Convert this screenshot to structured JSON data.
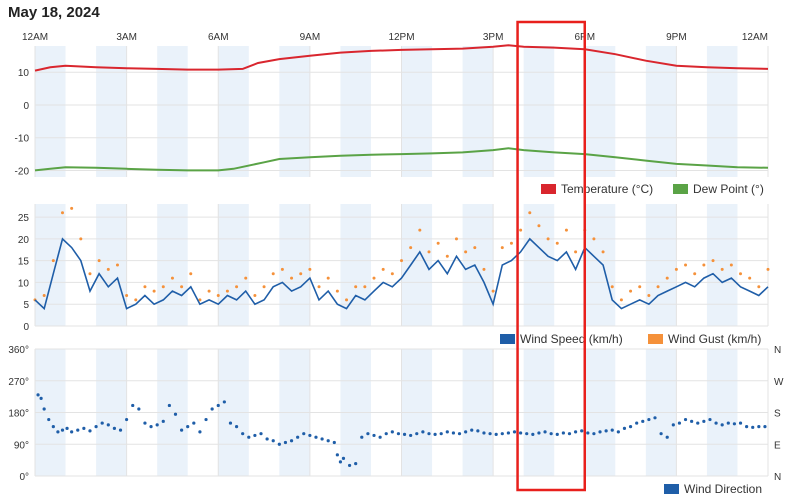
{
  "page": {
    "title": "May 18, 2024"
  },
  "colors": {
    "temperature": "#d9262e",
    "dew_point": "#5aa346",
    "wind_speed": "#1f5ea8",
    "wind_gust": "#f5913a",
    "wind_direction": "#1f5ea8",
    "band": "#eaf2fa",
    "grid": "#e3e3e3",
    "highlight": "#e8201c"
  },
  "time_axis": {
    "labels": [
      "12AM",
      "3AM",
      "6AM",
      "9AM",
      "12PM",
      "3PM",
      "6PM",
      "9PM",
      "12AM"
    ],
    "hours": [
      0,
      3,
      6,
      9,
      12,
      15,
      18,
      21,
      24
    ]
  },
  "highlight": {
    "start_hour": 15.8,
    "end_hour": 18.0
  },
  "chart_data": [
    {
      "type": "line",
      "name": "temperature-panel",
      "xlabel": "",
      "ylabel": "",
      "xlim": [
        0,
        24
      ],
      "ylim": [
        -22,
        18
      ],
      "yticks": [
        10,
        0,
        -10,
        -20
      ],
      "grid": true,
      "legend": "bottom-right",
      "series": [
        {
          "name": "Temperature (°C)",
          "x": [
            0,
            0.5,
            1,
            2,
            3,
            4,
            5,
            6,
            6.8,
            7.3,
            8,
            9,
            10,
            11,
            12,
            13,
            14,
            15,
            15.5,
            16,
            17,
            18,
            19,
            20,
            21,
            22,
            23,
            24
          ],
          "y": [
            10.5,
            11.5,
            12,
            11.5,
            11.2,
            11,
            10.8,
            10.8,
            11,
            12.8,
            14,
            15,
            16,
            16.5,
            16.8,
            17,
            17.2,
            17.8,
            18.2,
            17.8,
            17.5,
            17,
            15.5,
            13.5,
            12,
            11.5,
            11.2,
            11
          ]
        },
        {
          "name": "Dew Point (°)",
          "x": [
            0,
            0.5,
            1,
            2,
            3,
            4,
            5,
            6,
            6.5,
            7.5,
            8,
            9,
            10,
            11,
            12,
            13,
            14,
            15,
            15.5,
            16,
            17,
            18,
            19,
            20,
            21,
            22,
            23,
            24
          ],
          "y": [
            -20,
            -19.5,
            -19,
            -19.2,
            -19.5,
            -19.8,
            -20,
            -20,
            -19.5,
            -17.5,
            -16.5,
            -16,
            -15.5,
            -15.2,
            -15,
            -14.8,
            -14.5,
            -13.8,
            -13.2,
            -13.8,
            -14.5,
            -15,
            -16,
            -17,
            -18,
            -18.5,
            -19,
            -19.2
          ]
        }
      ]
    },
    {
      "type": "line",
      "name": "wind-panel",
      "xlabel": "",
      "ylabel": "",
      "xlim": [
        0,
        24
      ],
      "ylim": [
        0,
        28
      ],
      "yticks": [
        0,
        5,
        10,
        15,
        20,
        25
      ],
      "grid": true,
      "legend": "bottom-right",
      "series": [
        {
          "name": "Wind Speed (km/h)",
          "x": [
            0,
            0.3,
            0.6,
            0.9,
            1.2,
            1.5,
            1.8,
            2.1,
            2.4,
            2.7,
            3,
            3.3,
            3.6,
            3.9,
            4.2,
            4.5,
            4.8,
            5.1,
            5.4,
            5.7,
            6,
            6.3,
            6.6,
            6.9,
            7.2,
            7.5,
            7.8,
            8.1,
            8.4,
            8.7,
            9,
            9.3,
            9.6,
            9.9,
            10.2,
            10.5,
            10.8,
            11.1,
            11.4,
            11.7,
            12,
            12.3,
            12.6,
            12.9,
            13.2,
            13.5,
            13.8,
            14.1,
            14.4,
            14.7,
            15,
            15.3,
            15.6,
            15.9,
            16.2,
            16.5,
            16.8,
            17.1,
            17.4,
            17.7,
            18,
            18.3,
            18.6,
            18.9,
            19.2,
            19.5,
            19.8,
            20.1,
            20.4,
            20.7,
            21,
            21.3,
            21.6,
            21.9,
            22.2,
            22.5,
            22.8,
            23.1,
            23.4,
            23.7,
            24
          ],
          "y": [
            6,
            4,
            12,
            20,
            18,
            15,
            8,
            12,
            9,
            11,
            4,
            5,
            7,
            5,
            6,
            8,
            7,
            9,
            5,
            6,
            5,
            7,
            6,
            8,
            5,
            6,
            9,
            10,
            8,
            9,
            11,
            6,
            8,
            5,
            4,
            7,
            6,
            8,
            10,
            9,
            11,
            14,
            17,
            13,
            15,
            12,
            16,
            13,
            14,
            10,
            5,
            14,
            15,
            17,
            20,
            18,
            16,
            15,
            17,
            13,
            18,
            16,
            14,
            6,
            4,
            5,
            6,
            5,
            7,
            8,
            9,
            10,
            9,
            11,
            12,
            10,
            11,
            9,
            8,
            7,
            9
          ]
        },
        {
          "name": "Wind Gust (km/h)",
          "x": [
            0,
            0.3,
            0.6,
            0.9,
            1.2,
            1.5,
            1.8,
            2.1,
            2.4,
            2.7,
            3,
            3.3,
            3.6,
            3.9,
            4.2,
            4.5,
            4.8,
            5.1,
            5.4,
            5.7,
            6,
            6.3,
            6.6,
            6.9,
            7.2,
            7.5,
            7.8,
            8.1,
            8.4,
            8.7,
            9,
            9.3,
            9.6,
            9.9,
            10.2,
            10.5,
            10.8,
            11.1,
            11.4,
            11.7,
            12,
            12.3,
            12.6,
            12.9,
            13.2,
            13.5,
            13.8,
            14.1,
            14.4,
            14.7,
            15,
            15.3,
            15.6,
            15.9,
            16.2,
            16.5,
            16.8,
            17.1,
            17.4,
            17.7,
            18,
            18.3,
            18.6,
            18.9,
            19.2,
            19.5,
            19.8,
            20.1,
            20.4,
            20.7,
            21,
            21.3,
            21.6,
            21.9,
            22.2,
            22.5,
            22.8,
            23.1,
            23.4,
            23.7,
            24
          ],
          "y": [
            6,
            7,
            15,
            26,
            27,
            20,
            12,
            15,
            13,
            14,
            7,
            6,
            9,
            8,
            9,
            11,
            9,
            12,
            6,
            8,
            7,
            8,
            9,
            11,
            7,
            9,
            12,
            13,
            11,
            12,
            13,
            9,
            11,
            8,
            6,
            9,
            9,
            11,
            13,
            12,
            15,
            18,
            22,
            17,
            19,
            16,
            20,
            17,
            18,
            13,
            8,
            18,
            19,
            22,
            26,
            23,
            20,
            19,
            22,
            17,
            22,
            20,
            17,
            9,
            6,
            8,
            9,
            7,
            9,
            11,
            13,
            14,
            12,
            14,
            15,
            13,
            14,
            12,
            11,
            9,
            13
          ]
        }
      ]
    },
    {
      "type": "scatter",
      "name": "wind-direction-panel",
      "xlabel": "",
      "ylabel": "",
      "xlim": [
        0,
        24
      ],
      "ylim": [
        0,
        360
      ],
      "yticks": [
        0,
        90,
        180,
        270,
        360
      ],
      "yticklabels": [
        "0°",
        "90°",
        "180°",
        "270°",
        "360°"
      ],
      "compass_labels": [
        "N",
        "E",
        "S",
        "W",
        "N"
      ],
      "grid": true,
      "legend": "bottom-right",
      "series": [
        {
          "name": "Wind Direction",
          "x": [
            0.1,
            0.2,
            0.3,
            0.45,
            0.6,
            0.75,
            0.9,
            1.05,
            1.2,
            1.4,
            1.6,
            1.8,
            2.0,
            2.2,
            2.4,
            2.6,
            2.8,
            3.0,
            3.2,
            3.4,
            3.6,
            3.8,
            4.0,
            4.2,
            4.4,
            4.6,
            4.8,
            5.0,
            5.2,
            5.4,
            5.6,
            5.8,
            6.0,
            6.2,
            6.4,
            6.6,
            6.8,
            7.0,
            7.2,
            7.4,
            7.6,
            7.8,
            8.0,
            8.2,
            8.4,
            8.6,
            8.8,
            9.0,
            9.2,
            9.4,
            9.6,
            9.8,
            9.9,
            10.0,
            10.1,
            10.3,
            10.5,
            10.7,
            10.9,
            11.1,
            11.3,
            11.5,
            11.7,
            11.9,
            12.1,
            12.3,
            12.5,
            12.7,
            12.9,
            13.1,
            13.3,
            13.5,
            13.7,
            13.9,
            14.1,
            14.3,
            14.5,
            14.7,
            14.9,
            15.1,
            15.3,
            15.5,
            15.7,
            15.9,
            16.1,
            16.3,
            16.5,
            16.7,
            16.9,
            17.1,
            17.3,
            17.5,
            17.7,
            17.9,
            18.1,
            18.3,
            18.5,
            18.7,
            18.9,
            19.1,
            19.3,
            19.5,
            19.7,
            19.9,
            20.1,
            20.3,
            20.5,
            20.7,
            20.9,
            21.1,
            21.3,
            21.5,
            21.7,
            21.9,
            22.1,
            22.3,
            22.5,
            22.7,
            22.9,
            23.1,
            23.3,
            23.5,
            23.7,
            23.9
          ],
          "y": [
            230,
            220,
            190,
            160,
            140,
            125,
            130,
            135,
            125,
            130,
            135,
            128,
            140,
            150,
            145,
            135,
            130,
            160,
            200,
            190,
            150,
            140,
            145,
            155,
            200,
            175,
            130,
            140,
            150,
            125,
            160,
            190,
            200,
            210,
            150,
            140,
            120,
            110,
            115,
            120,
            105,
            100,
            90,
            95,
            100,
            110,
            120,
            115,
            110,
            105,
            100,
            95,
            60,
            40,
            50,
            30,
            35,
            110,
            120,
            115,
            110,
            120,
            125,
            120,
            118,
            115,
            120,
            125,
            120,
            118,
            120,
            125,
            122,
            120,
            125,
            130,
            128,
            122,
            120,
            118,
            120,
            122,
            125,
            122,
            120,
            118,
            122,
            125,
            120,
            118,
            122,
            120,
            125,
            128,
            122,
            120,
            125,
            128,
            130,
            125,
            135,
            140,
            150,
            155,
            160,
            165,
            120,
            110,
            145,
            150,
            160,
            155,
            150,
            155,
            160,
            150,
            145,
            150,
            148,
            150,
            140,
            138,
            140,
            140
          ]
        }
      ]
    }
  ]
}
